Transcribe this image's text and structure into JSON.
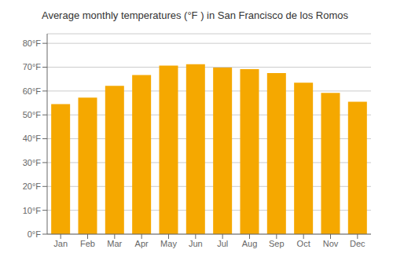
{
  "chart_data": {
    "type": "bar",
    "title": "Average monthly temperatures (°F ) in San Francisco de los Romos",
    "categories": [
      "Jan",
      "Feb",
      "Mar",
      "Apr",
      "May",
      "Jun",
      "Jul",
      "Aug",
      "Sep",
      "Oct",
      "Nov",
      "Dec"
    ],
    "values": [
      54.5,
      57.2,
      62.2,
      66.7,
      70.7,
      71.2,
      69.8,
      69.2,
      67.5,
      63.5,
      59.2,
      55.5
    ],
    "color": "#F5A800",
    "ylim": [
      0,
      84
    ],
    "yticks": [
      {
        "value": 0,
        "label": "0°F"
      },
      {
        "value": 10,
        "label": "10°F"
      },
      {
        "value": 20,
        "label": "20°F"
      },
      {
        "value": 30,
        "label": "30°F"
      },
      {
        "value": 40,
        "label": "40°F"
      },
      {
        "value": 50,
        "label": "50°F"
      },
      {
        "value": 60,
        "label": "60°F"
      },
      {
        "value": 70,
        "label": "70°F"
      },
      {
        "value": 80,
        "label": "80°F"
      }
    ],
    "grid": true
  }
}
